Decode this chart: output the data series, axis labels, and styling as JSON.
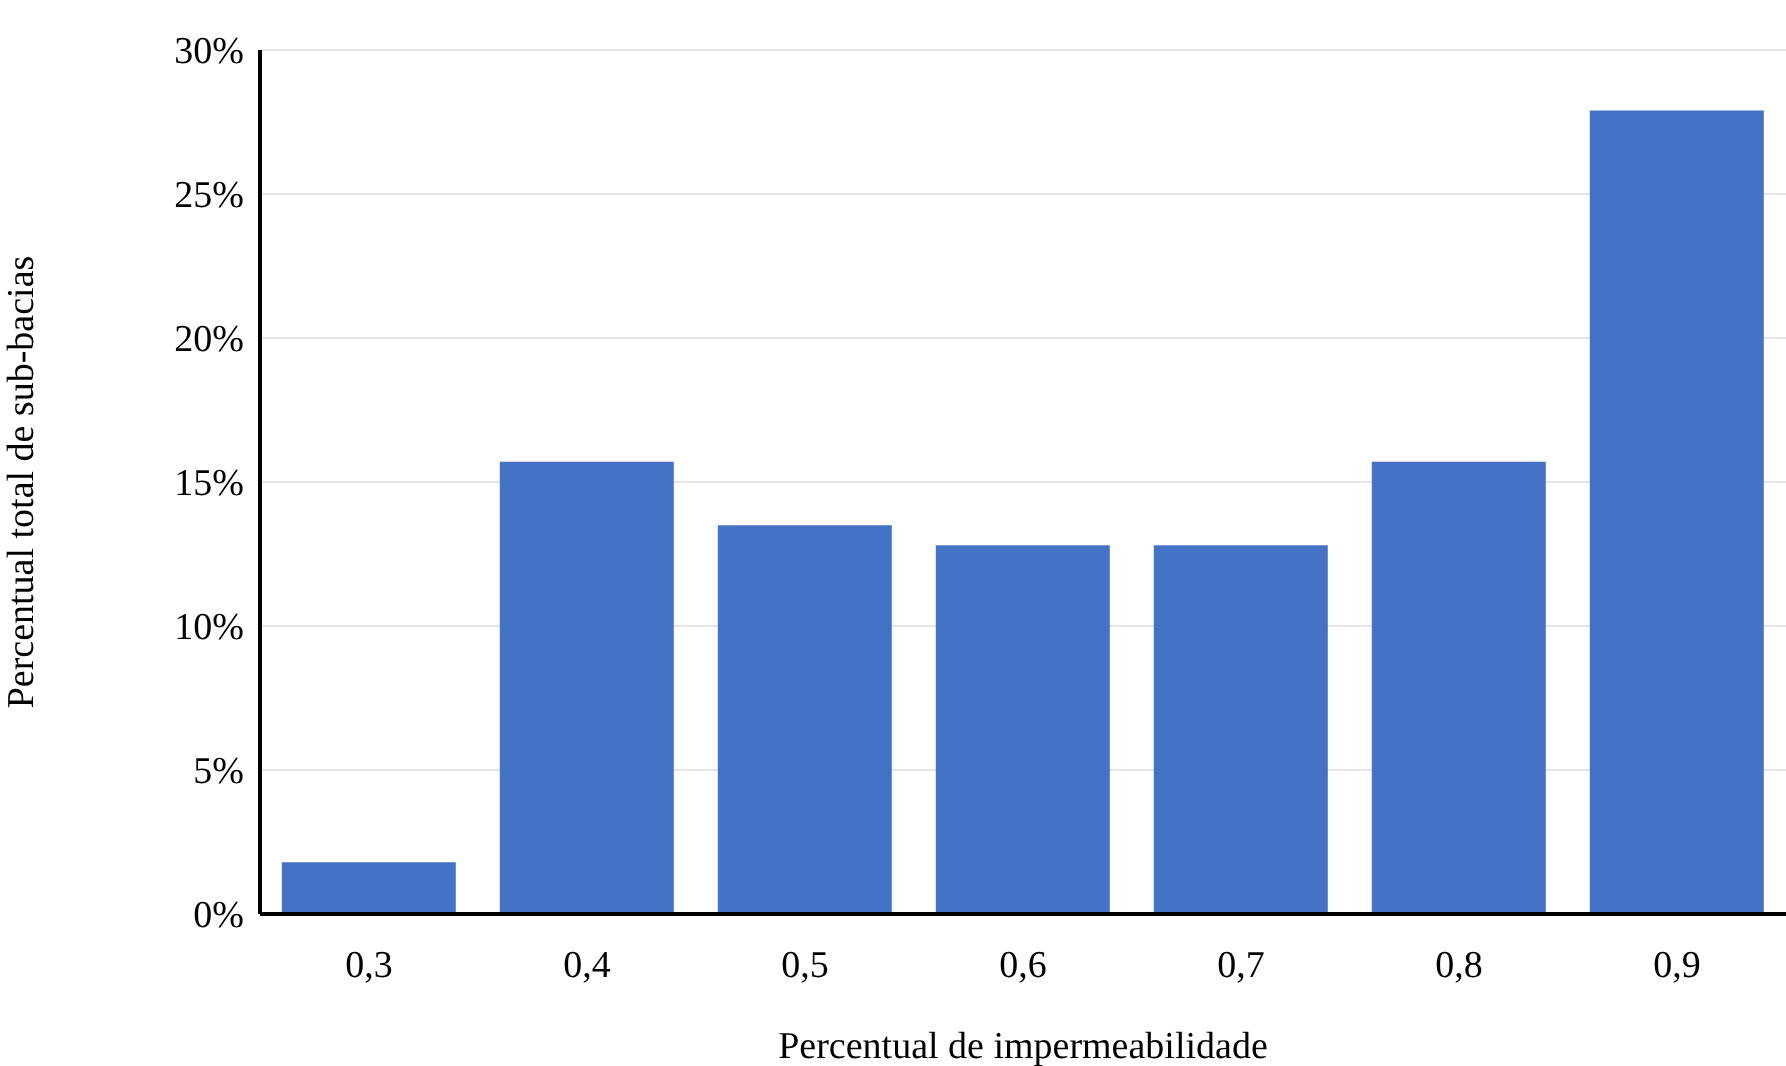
{
  "chart_data": {
    "type": "bar",
    "xlabel": "Percentual de impermeabilidade",
    "ylabel": "Percentual total de sub-bacias",
    "categories": [
      "0,3",
      "0,4",
      "0,5",
      "0,6",
      "0,7",
      "0,8",
      "0,9"
    ],
    "values": [
      1.8,
      15.7,
      13.5,
      12.8,
      12.8,
      15.7,
      27.9
    ],
    "color": "#4472c4",
    "ylim": [
      0,
      30
    ],
    "yticks": [
      {
        "value": 0,
        "label": "0%"
      },
      {
        "value": 5,
        "label": "5%"
      },
      {
        "value": 10,
        "label": "10%"
      },
      {
        "value": 15,
        "label": "15%"
      },
      {
        "value": 20,
        "label": "20%"
      },
      {
        "value": 25,
        "label": "25%"
      },
      {
        "value": 30,
        "label": "30%"
      }
    ],
    "grid": "y"
  }
}
